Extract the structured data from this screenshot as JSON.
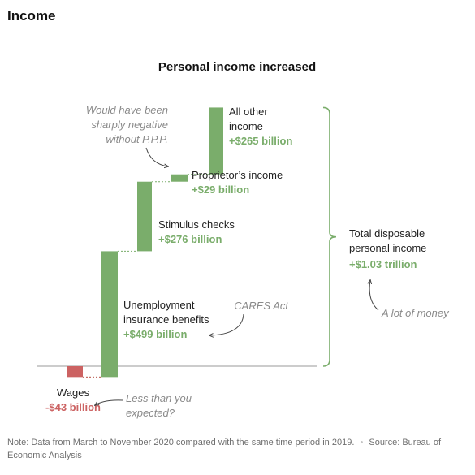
{
  "section_title": "Income",
  "colors": {
    "positive": "#7aad6b",
    "negative": "#cc6262",
    "text": "#222222",
    "annotation": "#8a8a8a",
    "axis": "#9a9a9a"
  },
  "chart_data": {
    "type": "bar",
    "subtype": "waterfall",
    "title": "Personal income increased",
    "unit": "billion dollars",
    "categories": [
      "Wages",
      "Unemployment insurance benefits",
      "Stimulus checks",
      "Proprietor's income",
      "All other income"
    ],
    "values": [
      -43,
      499,
      276,
      29,
      265
    ],
    "ylim": [
      -80,
      1050
    ],
    "grid": false,
    "legend": "none",
    "labels": [
      {
        "lines": [
          "Wages"
        ],
        "value": "-$43 billion",
        "sign": "negative"
      },
      {
        "lines": [
          "Unemployment",
          "insurance benefits"
        ],
        "value": "+$499 billion",
        "sign": "positive"
      },
      {
        "lines": [
          "Stimulus checks"
        ],
        "value": "+$276 billion",
        "sign": "positive"
      },
      {
        "lines": [
          "Proprietor’s income"
        ],
        "value": "+$29 billion",
        "sign": "positive"
      },
      {
        "lines": [
          "All other",
          "income"
        ],
        "value": "+$265 billion",
        "sign": "positive"
      }
    ],
    "total": {
      "lines": [
        "Total disposable",
        "personal income"
      ],
      "value": "+$1.03 trillion"
    },
    "annotations": [
      {
        "lines": [
          "Would have been",
          "sharply negative",
          "without P.P.P."
        ]
      },
      {
        "lines": [
          "CARES Act"
        ]
      },
      {
        "lines": [
          "A lot of money"
        ]
      },
      {
        "lines": [
          "Less than you",
          "expected?"
        ]
      }
    ]
  },
  "note": {
    "text": "Note: Data from March to November 2020 compared with the same time period in 2019.",
    "separator": "•",
    "source": "Source: Bureau of Economic Analysis"
  }
}
